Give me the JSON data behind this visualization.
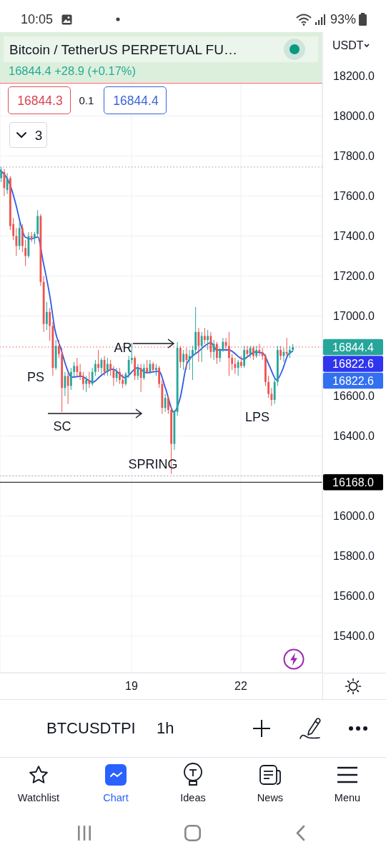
{
  "chart_data": {
    "type": "candlestick",
    "title": "Bitcoin / TetherUS PERPETUAL FU…",
    "subtitle": "16844.4 +28.9 (+0.17%)",
    "ylabel": "USDT",
    "xlim": [
      15.392,
      24.235
    ],
    "xticks": [
      19,
      22
    ],
    "ylim": [
      15215,
      18420
    ],
    "yticks": [
      {
        "value": 15400,
        "label": "15400.0"
      },
      {
        "value": 15600,
        "label": "15600.0"
      },
      {
        "value": 15800,
        "label": "15800.0"
      },
      {
        "value": 16000,
        "label": "16000.0"
      },
      {
        "value": 16200,
        "label": null
      },
      {
        "value": 16400,
        "label": "16400.0"
      },
      {
        "value": 16600,
        "label": "16600.0"
      },
      {
        "value": 16800,
        "label": null
      },
      {
        "value": 17000,
        "label": "17000.0"
      },
      {
        "value": 17200,
        "label": "17200.0"
      },
      {
        "value": 17400,
        "label": "17400.0"
      },
      {
        "value": 17600,
        "label": "17600.0"
      },
      {
        "value": 17800,
        "label": "17800.0"
      },
      {
        "value": 18000,
        "label": "18000.0"
      },
      {
        "value": 18200,
        "label": "18200.0"
      }
    ],
    "grid": true,
    "series": [
      {
        "x": [
          15.417,
          15.5,
          15.583,
          15.667,
          15.75,
          15.833,
          15.917,
          16,
          16.083,
          16.167,
          16.25,
          16.333,
          16.417,
          16.5,
          16.583,
          16.667,
          16.75,
          16.833,
          16.917,
          17,
          17.083,
          17.167,
          17.25,
          17.333,
          17.417,
          17.5,
          17.583,
          17.667,
          17.75,
          17.833,
          17.917,
          18,
          18.083,
          18.167,
          18.25,
          18.333,
          18.417,
          18.5,
          18.583,
          18.667,
          18.75,
          18.833,
          18.917,
          19,
          19.083,
          19.167,
          19.25,
          19.333,
          19.417,
          19.5,
          19.583,
          19.667,
          19.75,
          19.833,
          19.917,
          20,
          20.083,
          20.167,
          20.25,
          20.333,
          20.417,
          20.5,
          20.583,
          20.667,
          20.75,
          20.833,
          20.917,
          21,
          21.083,
          21.167,
          21.25,
          21.333,
          21.417,
          21.5,
          21.583,
          21.667,
          21.75,
          21.833,
          21.917,
          22,
          22.083,
          22.167,
          22.25,
          22.333,
          22.417,
          22.5,
          22.583,
          22.667,
          22.75,
          22.833,
          22.917,
          23,
          23.083,
          23.167,
          23.25,
          23.333,
          23.417
        ],
        "ohlc": [
          [
            17690,
            17746,
            17670,
            17725
          ],
          [
            17720,
            17735,
            17600,
            17640
          ],
          [
            17630,
            17715,
            17610,
            17690
          ],
          [
            17690,
            17700,
            17430,
            17450
          ],
          [
            17460,
            17490,
            17380,
            17400
          ],
          [
            17400,
            17440,
            17300,
            17350
          ],
          [
            17350,
            17470,
            17330,
            17440
          ],
          [
            17440,
            17460,
            17320,
            17350
          ],
          [
            17340,
            17380,
            17250,
            17300
          ],
          [
            17300,
            17420,
            17290,
            17400
          ],
          [
            17400,
            17420,
            17370,
            17390
          ],
          [
            17390,
            17420,
            17360,
            17410
          ],
          [
            17410,
            17530,
            17400,
            17500
          ],
          [
            17500,
            17510,
            17150,
            17170
          ],
          [
            17170,
            17200,
            16920,
            16960
          ],
          [
            16960,
            17070,
            16930,
            17020
          ],
          [
            17020,
            17040,
            16875,
            16950
          ],
          [
            16950,
            16970,
            16700,
            16740
          ],
          [
            16740,
            16880,
            16730,
            16850
          ],
          [
            16850,
            16880,
            16790,
            16810
          ],
          [
            16810,
            16840,
            16520,
            16640
          ],
          [
            16640,
            16720,
            16600,
            16700
          ],
          [
            16700,
            16720,
            16560,
            16650
          ],
          [
            16650,
            16740,
            16630,
            16720
          ],
          [
            16720,
            16770,
            16690,
            16750
          ],
          [
            16750,
            16790,
            16700,
            16720
          ],
          [
            16720,
            16760,
            16680,
            16700
          ],
          [
            16700,
            16720,
            16630,
            16660
          ],
          [
            16660,
            16700,
            16620,
            16680
          ],
          [
            16680,
            16720,
            16640,
            16660
          ],
          [
            16660,
            16740,
            16650,
            16720
          ],
          [
            16720,
            16780,
            16700,
            16760
          ],
          [
            16760,
            16830,
            16720,
            16740
          ],
          [
            16740,
            16790,
            16710,
            16780
          ],
          [
            16780,
            16800,
            16700,
            16720
          ],
          [
            16720,
            16790,
            16700,
            16760
          ],
          [
            16760,
            16780,
            16700,
            16730
          ],
          [
            16730,
            16750,
            16650,
            16690
          ],
          [
            16690,
            16740,
            16670,
            16720
          ],
          [
            16720,
            16740,
            16660,
            16680
          ],
          [
            16680,
            16710,
            16640,
            16660
          ],
          [
            16660,
            16720,
            16650,
            16710
          ],
          [
            16710,
            16800,
            16690,
            16780
          ],
          [
            16780,
            16866,
            16760,
            16790
          ],
          [
            16790,
            16800,
            16680,
            16700
          ],
          [
            16700,
            16760,
            16680,
            16740
          ],
          [
            16740,
            16760,
            16620,
            16690
          ],
          [
            16690,
            16760,
            16680,
            16740
          ],
          [
            16740,
            16780,
            16710,
            16720
          ],
          [
            16720,
            16780,
            16710,
            16760
          ],
          [
            16760,
            16770,
            16720,
            16730
          ],
          [
            16730,
            16760,
            16700,
            16740
          ],
          [
            16740,
            16750,
            16640,
            16660
          ],
          [
            16660,
            16680,
            16510,
            16540
          ],
          [
            16540,
            16610,
            16520,
            16590
          ],
          [
            16590,
            16600,
            16510,
            16530
          ],
          [
            16530,
            16550,
            16210,
            16360
          ],
          [
            16360,
            16530,
            16330,
            16520
          ],
          [
            16520,
            16870,
            16500,
            16840
          ],
          [
            16840,
            16850,
            16740,
            16770
          ],
          [
            16770,
            16830,
            16730,
            16810
          ],
          [
            16810,
            16840,
            16730,
            16780
          ],
          [
            16780,
            16830,
            16730,
            16800
          ],
          [
            16800,
            16850,
            16680,
            16830
          ],
          [
            16830,
            17045,
            16810,
            16920
          ],
          [
            16920,
            16940,
            16770,
            16850
          ],
          [
            16850,
            16920,
            16770,
            16900
          ],
          [
            16900,
            16940,
            16860,
            16880
          ],
          [
            16880,
            16930,
            16830,
            16900
          ],
          [
            16900,
            16920,
            16790,
            16820
          ],
          [
            16820,
            16880,
            16780,
            16860
          ],
          [
            16860,
            16870,
            16760,
            16790
          ],
          [
            16790,
            16840,
            16770,
            16830
          ],
          [
            16830,
            16890,
            16820,
            16870
          ],
          [
            16870,
            16890,
            16830,
            16850
          ],
          [
            16850,
            16920,
            16700,
            16790
          ],
          [
            16790,
            16810,
            16730,
            16760
          ],
          [
            16760,
            16790,
            16710,
            16740
          ],
          [
            16740,
            16780,
            16700,
            16770
          ],
          [
            16770,
            16800,
            16740,
            16750
          ],
          [
            16750,
            16850,
            16740,
            16830
          ],
          [
            16830,
            16850,
            16790,
            16810
          ],
          [
            16810,
            16850,
            16790,
            16840
          ],
          [
            16840,
            16850,
            16780,
            16800
          ],
          [
            16800,
            16850,
            16790,
            16830
          ],
          [
            16830,
            16860,
            16800,
            16820
          ],
          [
            16820,
            16840,
            16780,
            16800
          ],
          [
            16800,
            16810,
            16650,
            16670
          ],
          [
            16670,
            16700,
            16590,
            16610
          ],
          [
            16610,
            16640,
            16550,
            16580
          ],
          [
            16580,
            16690,
            16560,
            16670
          ],
          [
            16670,
            16850,
            16650,
            16830
          ],
          [
            16830,
            16850,
            16780,
            16800
          ],
          [
            16800,
            16840,
            16770,
            16820
          ],
          [
            16820,
            16890,
            16800,
            16810
          ],
          [
            16810,
            16850,
            16790,
            16830
          ],
          [
            16830,
            16860,
            16820,
            16844.4
          ]
        ],
        "colors": [
          "#26a69a",
          "#ef5350",
          "#26a69a",
          "#ef5350",
          "#ef5350",
          "#ef5350",
          "#26a69a",
          "#ef5350",
          "#ef5350",
          "#26a69a",
          "#ef5350",
          "#26a69a",
          "#26a69a",
          "#ef5350",
          "#ef5350",
          "#26a69a",
          "#ef5350",
          "#ef5350",
          "#26a69a",
          "#ef5350",
          "#ef5350",
          "#26a69a",
          "#ef5350",
          "#26a69a",
          "#26a69a",
          "#ef5350",
          "#ef5350",
          "#ef5350",
          "#26a69a",
          "#ef5350",
          "#26a69a",
          "#26a69a",
          "#ef5350",
          "#26a69a",
          "#ef5350",
          "#26a69a",
          "#ef5350",
          "#ef5350",
          "#26a69a",
          "#ef5350",
          "#ef5350",
          "#26a69a",
          "#26a69a",
          "#26a69a",
          "#ef5350",
          "#26a69a",
          "#ef5350",
          "#26a69a",
          "#ef5350",
          "#26a69a",
          "#ef5350",
          "#26a69a",
          "#ef5350",
          "#ef5350",
          "#26a69a",
          "#ef5350",
          "#ef5350",
          "#26a69a",
          "#26a69a",
          "#ef5350",
          "#26a69a",
          "#ef5350",
          "#26a69a",
          "#26a69a",
          "#26a69a",
          "#ef5350",
          "#26a69a",
          "#ef5350",
          "#26a69a",
          "#ef5350",
          "#26a69a",
          "#ef5350",
          "#26a69a",
          "#26a69a",
          "#ef5350",
          "#ef5350",
          "#ef5350",
          "#ef5350",
          "#26a69a",
          "#ef5350",
          "#26a69a",
          "#ef5350",
          "#26a69a",
          "#ef5350",
          "#26a69a",
          "#ef5350",
          "#ef5350",
          "#ef5350",
          "#ef5350",
          "#ef5350",
          "#26a69a",
          "#26a69a",
          "#ef5350",
          "#26a69a",
          "#ef5350",
          "#26a69a",
          "#26a69a"
        ],
        "value_labels": [
          null,
          null,
          null,
          null,
          null,
          null,
          null,
          null,
          null,
          null,
          null,
          null,
          null,
          null,
          null,
          null,
          null,
          null,
          null,
          null,
          null,
          null,
          null,
          null,
          null,
          null,
          null,
          null,
          null,
          null,
          null,
          null,
          null,
          null,
          null,
          null,
          null,
          null,
          null,
          null,
          null,
          null,
          null,
          null,
          null,
          null,
          null,
          null,
          null,
          null,
          null,
          null,
          null,
          null,
          null,
          null,
          null,
          null,
          null,
          null,
          null,
          null,
          null,
          null,
          null,
          null,
          null,
          null,
          null,
          null,
          null,
          null,
          null,
          null,
          null,
          null,
          null,
          null,
          null,
          null,
          null,
          null,
          null,
          null,
          null,
          null,
          null,
          null,
          null,
          null,
          null,
          null,
          null,
          null,
          null,
          null,
          "16844.4"
        ]
      },
      {
        "type": "line",
        "color": "#2f5be6",
        "x": [
          15.4,
          15.69,
          15.82,
          15.98,
          16.08,
          16.24,
          16.43,
          16.57,
          16.77,
          16.9,
          17.06,
          17.22,
          17.35,
          17.61,
          17.94,
          18.14,
          18.33,
          18.49,
          18.82,
          19.16,
          19.41,
          19.75,
          19.94,
          20.16,
          20.33,
          20.53,
          20.84,
          21.18,
          21.33,
          21.67,
          22.06,
          22.39,
          22.61,
          22.78,
          22.98,
          23.14,
          23.29,
          23.417
        ],
        "values": [
          17730,
          17645,
          17563,
          17445,
          17395,
          17385,
          17395,
          17277,
          17088,
          16930,
          16837,
          16741,
          16694,
          16698,
          16669,
          16698,
          16723,
          16734,
          16691,
          16741,
          16716,
          16723,
          16633,
          16519,
          16587,
          16766,
          16823,
          16866,
          16830,
          16830,
          16784,
          16820,
          16812,
          16751,
          16680,
          16730,
          16805,
          16823
        ]
      }
    ],
    "ref_lines": [
      {
        "axis": "y",
        "value": 18165,
        "color": "#ef5350"
      },
      {
        "axis": "y",
        "value": 17745,
        "color": "#9598a1",
        "line_style": "dotted"
      },
      {
        "axis": "y",
        "value": 16844.4,
        "color": "#ef5350",
        "line_style": "dotted"
      },
      {
        "axis": "y",
        "value": 16200,
        "color": "#9598a1",
        "line_style": "dotted"
      },
      {
        "axis": "y",
        "value": 16168,
        "label": "16168.0",
        "color": "#000000"
      }
    ],
    "annotations": [
      "PS",
      "SC",
      "AR",
      "SPRING",
      "LPS",
      "16822.6",
      "16822.6",
      "16844.3",
      "0.1",
      "16844.4",
      "3",
      "10:05",
      "93%",
      "BTCUSDTPI",
      "1h",
      "Watchlist",
      "Chart",
      "Ideas",
      "News",
      "Menu"
    ]
  }
}
